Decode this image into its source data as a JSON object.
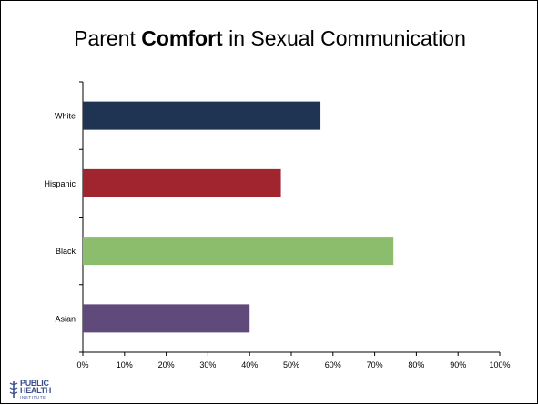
{
  "title": {
    "prefix": "Parent ",
    "emphasis": "Comfort",
    "suffix": " in Sexual Communication"
  },
  "logo": {
    "line1": "PUBLIC",
    "line2": "HEALTH",
    "line3": "INSTITUTE"
  },
  "chart_data": {
    "type": "bar",
    "orientation": "horizontal",
    "title": "Parent Comfort in Sexual Communication",
    "categories": [
      "White",
      "Hispanic",
      "Black",
      "Asian"
    ],
    "values": [
      57,
      47.5,
      74.5,
      40
    ],
    "colors": [
      "#1f3352",
      "#a0252f",
      "#8bbd6c",
      "#604a7b"
    ],
    "xlim": [
      0,
      100
    ],
    "xticks": [
      "0%",
      "10%",
      "20%",
      "30%",
      "40%",
      "50%",
      "60%",
      "70%",
      "80%",
      "90%",
      "100%"
    ],
    "grid": false,
    "legend": "none"
  }
}
